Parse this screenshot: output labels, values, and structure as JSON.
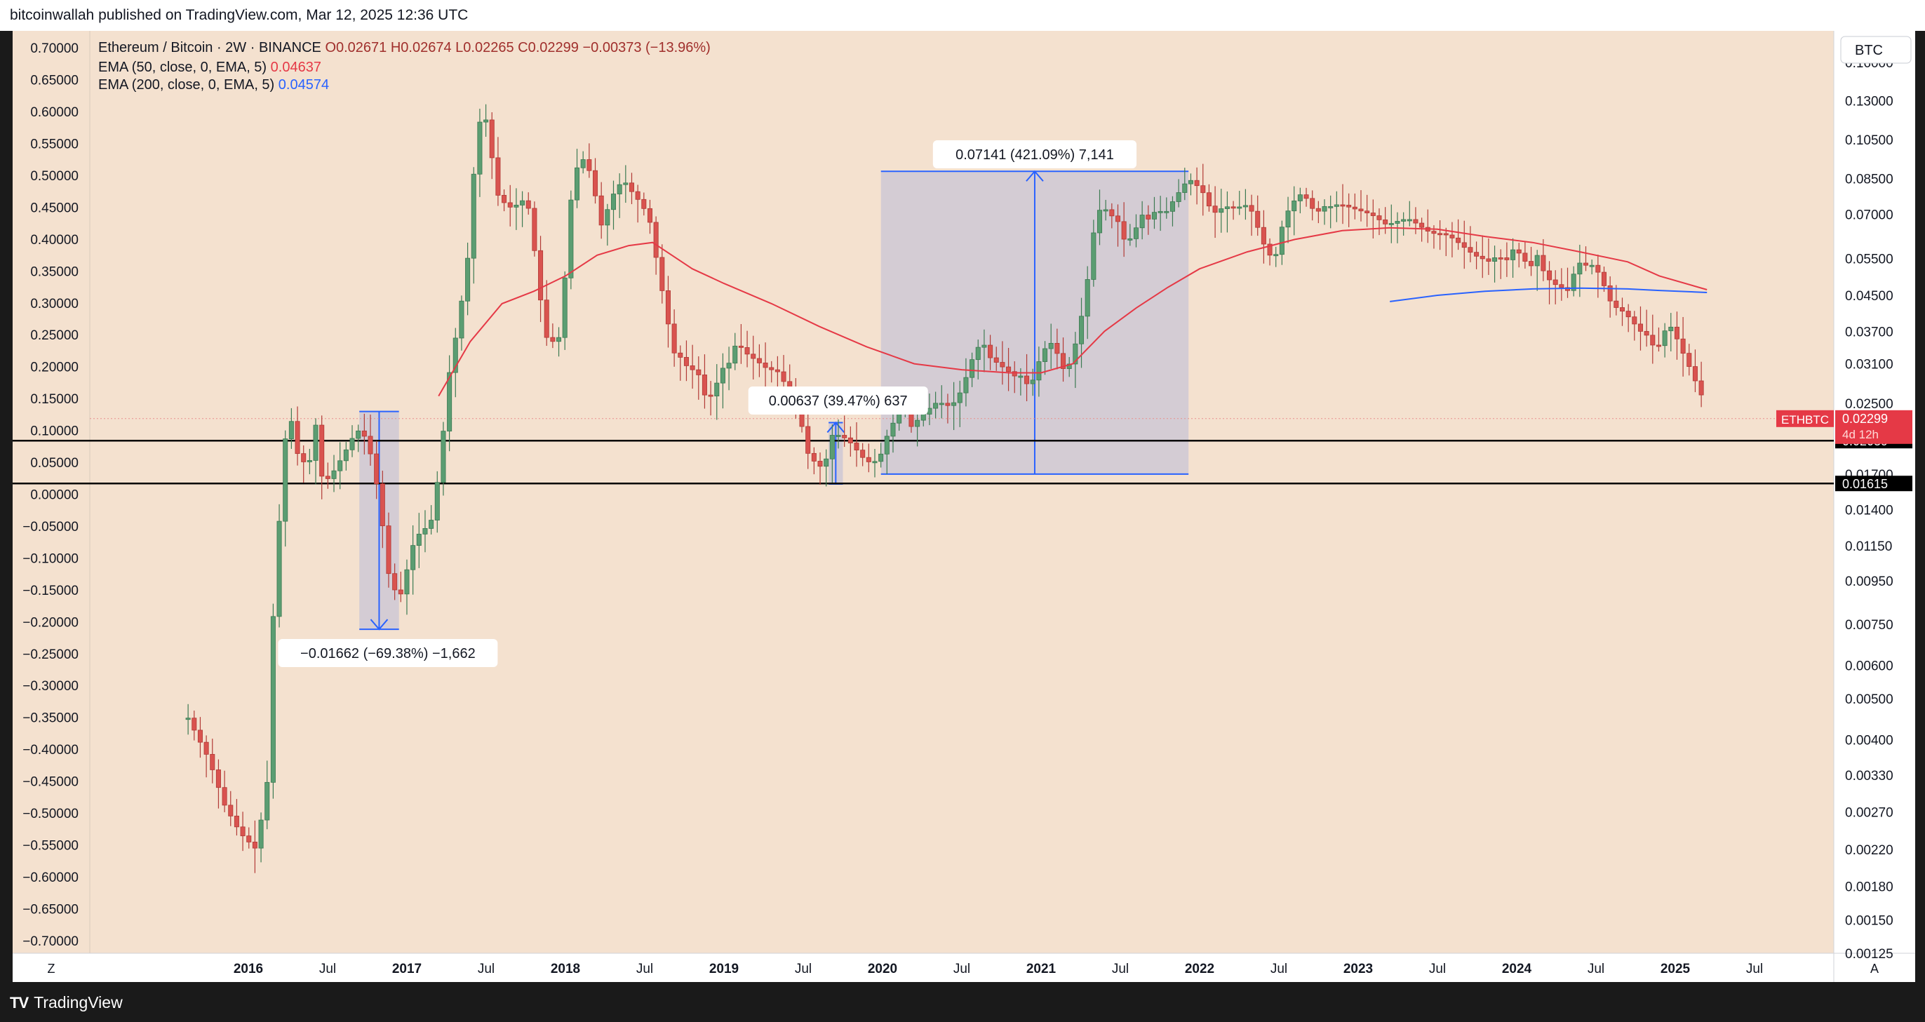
{
  "header": {
    "published_line": "bitcoinwallah published on TradingView.com, Mar 12, 2025 12:36 UTC"
  },
  "footer": {
    "brand_label": "TradingView"
  },
  "chart_data": {
    "type": "candlestick",
    "symbol_line": {
      "name": "Ethereum / Bitcoin · 2W · BINANCE",
      "open": "O0.02671",
      "high": "H0.02674",
      "low": "L0.02265",
      "close": "C0.02299",
      "change": "−0.00373 (−13.96%)"
    },
    "indicators": [
      {
        "label": "EMA (50, close, 0, EMA, 5)",
        "value": "0.04637",
        "color": "#e53946"
      },
      {
        "label": "EMA (200, close, 0, EMA, 5)",
        "value": "0.04574",
        "color": "#2962ff"
      }
    ],
    "currency_button": "BTC",
    "left_axis": {
      "min": -0.7,
      "max": 0.7,
      "ticks": [
        "0.70000",
        "0.65000",
        "0.60000",
        "0.55000",
        "0.50000",
        "0.45000",
        "0.40000",
        "0.35000",
        "0.30000",
        "0.25000",
        "0.20000",
        "0.15000",
        "0.10000",
        "0.05000",
        "0.00000",
        "−0.05000",
        "−0.10000",
        "−0.15000",
        "−0.20000",
        "−0.25000",
        "−0.30000",
        "−0.35000",
        "−0.40000",
        "−0.45000",
        "−0.50000",
        "−0.55000",
        "−0.60000",
        "−0.65000",
        "−0.70000"
      ]
    },
    "right_axis": {
      "scale": "log",
      "min": 0.00125,
      "max": 0.19,
      "ticks": [
        {
          "label": "0.16000",
          "v": 0.16
        },
        {
          "label": "0.13000",
          "v": 0.13
        },
        {
          "label": "0.10500",
          "v": 0.105
        },
        {
          "label": "0.08500",
          "v": 0.085
        },
        {
          "label": "0.07000",
          "v": 0.07
        },
        {
          "label": "0.05500",
          "v": 0.055
        },
        {
          "label": "0.04500",
          "v": 0.045
        },
        {
          "label": "0.03700",
          "v": 0.037
        },
        {
          "label": "0.03100",
          "v": 0.031
        },
        {
          "label": "0.02500",
          "v": 0.025
        },
        {
          "label": "0.01700",
          "v": 0.017
        },
        {
          "label": "0.01400",
          "v": 0.014
        },
        {
          "label": "0.01150",
          "v": 0.0115
        },
        {
          "label": "0.00950",
          "v": 0.0095
        },
        {
          "label": "0.00750",
          "v": 0.0075
        },
        {
          "label": "0.00600",
          "v": 0.006
        },
        {
          "label": "0.00500",
          "v": 0.005
        },
        {
          "label": "0.00400",
          "v": 0.004
        },
        {
          "label": "0.00330",
          "v": 0.0033
        },
        {
          "label": "0.00270",
          "v": 0.0027
        },
        {
          "label": "0.00220",
          "v": 0.0022
        },
        {
          "label": "0.00180",
          "v": 0.0018
        },
        {
          "label": "0.00150",
          "v": 0.0015
        },
        {
          "label": "0.00125",
          "v": 0.00125
        }
      ]
    },
    "price_tag": {
      "symbol": "ETHBTC",
      "price": "0.02299",
      "countdown": "4d 12h",
      "value": 0.02299,
      "color": "#e53946"
    },
    "horizontal_levels": [
      {
        "label": "0.02039",
        "value": 0.02039
      },
      {
        "label": "0.01615",
        "value": 0.01615
      }
    ],
    "x_axis": {
      "start": 2015.0,
      "end": 2026.0,
      "ticks": [
        {
          "label": "2016",
          "t": 2016.0,
          "bold": true
        },
        {
          "label": "Jul",
          "t": 2016.5
        },
        {
          "label": "2017",
          "t": 2017.0,
          "bold": true
        },
        {
          "label": "Jul",
          "t": 2017.5
        },
        {
          "label": "2018",
          "t": 2018.0,
          "bold": true
        },
        {
          "label": "Jul",
          "t": 2018.5
        },
        {
          "label": "2019",
          "t": 2019.0,
          "bold": true
        },
        {
          "label": "Jul",
          "t": 2019.5
        },
        {
          "label": "2020",
          "t": 2020.0,
          "bold": true
        },
        {
          "label": "Jul",
          "t": 2020.5
        },
        {
          "label": "2021",
          "t": 2021.0,
          "bold": true
        },
        {
          "label": "Jul",
          "t": 2021.5
        },
        {
          "label": "2022",
          "t": 2022.0,
          "bold": true
        },
        {
          "label": "Jul",
          "t": 2022.5
        },
        {
          "label": "2023",
          "t": 2023.0,
          "bold": true
        },
        {
          "label": "Jul",
          "t": 2023.5
        },
        {
          "label": "2024",
          "t": 2024.0,
          "bold": true
        },
        {
          "label": "Jul",
          "t": 2024.5
        },
        {
          "label": "2025",
          "t": 2025.0,
          "bold": true
        },
        {
          "label": "Jul",
          "t": 2025.5
        }
      ]
    },
    "corner_buttons": {
      "left": "Z",
      "right": "A"
    },
    "measurements": [
      {
        "label": "−0.01662 (−69.38%) −1,662",
        "t_start": 2016.7,
        "t_end": 2016.95,
        "from": 0.0239,
        "to": 0.0073,
        "direction": "down"
      },
      {
        "label": "0.00637 (39.47%) 637",
        "t_start": 2019.66,
        "t_end": 2019.75,
        "from": 0.0161,
        "to": 0.0225,
        "direction": "up"
      },
      {
        "label": "0.07141 (421.09%) 7,141",
        "t_start": 2019.99,
        "t_end": 2021.93,
        "from": 0.017,
        "to": 0.0884,
        "direction": "up"
      }
    ],
    "series_anchors": {
      "price": [
        [
          2015.62,
          0.0045
        ],
        [
          2015.75,
          0.0036
        ],
        [
          2015.85,
          0.0028
        ],
        [
          2015.95,
          0.0024
        ],
        [
          2016.05,
          0.0022
        ],
        [
          2016.12,
          0.0032
        ],
        [
          2016.16,
          0.0085
        ],
        [
          2016.2,
          0.014
        ],
        [
          2016.25,
          0.025
        ],
        [
          2016.31,
          0.019
        ],
        [
          2016.38,
          0.0175
        ],
        [
          2016.42,
          0.023
        ],
        [
          2016.47,
          0.016
        ],
        [
          2016.55,
          0.0175
        ],
        [
          2016.62,
          0.0195
        ],
        [
          2016.68,
          0.0215
        ],
        [
          2016.72,
          0.0215
        ],
        [
          2016.78,
          0.0185
        ],
        [
          2016.83,
          0.0145
        ],
        [
          2016.88,
          0.01
        ],
        [
          2016.95,
          0.0085
        ],
        [
          2017.05,
          0.012
        ],
        [
          2017.15,
          0.013
        ],
        [
          2017.2,
          0.017
        ],
        [
          2017.23,
          0.0215
        ],
        [
          2017.27,
          0.03
        ],
        [
          2017.32,
          0.038
        ],
        [
          2017.38,
          0.053
        ],
        [
          2017.42,
          0.086
        ],
        [
          2017.45,
          0.11
        ],
        [
          2017.48,
          0.128
        ],
        [
          2017.52,
          0.105
        ],
        [
          2017.57,
          0.078
        ],
        [
          2017.62,
          0.074
        ],
        [
          2017.67,
          0.072
        ],
        [
          2017.72,
          0.076
        ],
        [
          2017.77,
          0.072
        ],
        [
          2017.82,
          0.052
        ],
        [
          2017.87,
          0.036
        ],
        [
          2017.92,
          0.035
        ],
        [
          2017.97,
          0.036
        ],
        [
          2018.03,
          0.074
        ],
        [
          2018.08,
          0.093
        ],
        [
          2018.13,
          0.095
        ],
        [
          2018.18,
          0.08
        ],
        [
          2018.23,
          0.065
        ],
        [
          2018.28,
          0.075
        ],
        [
          2018.33,
          0.082
        ],
        [
          2018.38,
          0.083
        ],
        [
          2018.43,
          0.078
        ],
        [
          2018.48,
          0.074
        ],
        [
          2018.53,
          0.068
        ],
        [
          2018.58,
          0.053
        ],
        [
          2018.63,
          0.042
        ],
        [
          2018.68,
          0.033
        ],
        [
          2018.73,
          0.032
        ],
        [
          2018.78,
          0.03
        ],
        [
          2018.83,
          0.03
        ],
        [
          2018.88,
          0.026
        ],
        [
          2018.93,
          0.026
        ],
        [
          2018.98,
          0.03
        ],
        [
          2019.03,
          0.031
        ],
        [
          2019.08,
          0.035
        ],
        [
          2019.13,
          0.033
        ],
        [
          2019.18,
          0.032
        ],
        [
          2019.23,
          0.031
        ],
        [
          2019.28,
          0.03
        ],
        [
          2019.33,
          0.03
        ],
        [
          2019.38,
          0.028
        ],
        [
          2019.43,
          0.027
        ],
        [
          2019.48,
          0.023
        ],
        [
          2019.53,
          0.019
        ],
        [
          2019.58,
          0.018
        ],
        [
          2019.63,
          0.0175
        ],
        [
          2019.68,
          0.021
        ],
        [
          2019.73,
          0.021
        ],
        [
          2019.78,
          0.0205
        ],
        [
          2019.83,
          0.0195
        ],
        [
          2019.88,
          0.0185
        ],
        [
          2019.93,
          0.018
        ],
        [
          2019.98,
          0.0185
        ],
        [
          2020.03,
          0.021
        ],
        [
          2020.08,
          0.023
        ],
        [
          2020.13,
          0.026
        ],
        [
          2020.18,
          0.022
        ],
        [
          2020.23,
          0.023
        ],
        [
          2020.28,
          0.024
        ],
        [
          2020.33,
          0.025
        ],
        [
          2020.38,
          0.025
        ],
        [
          2020.43,
          0.0245
        ],
        [
          2020.48,
          0.026
        ],
        [
          2020.53,
          0.029
        ],
        [
          2020.58,
          0.033
        ],
        [
          2020.63,
          0.035
        ],
        [
          2020.68,
          0.032
        ],
        [
          2020.73,
          0.031
        ],
        [
          2020.78,
          0.03
        ],
        [
          2020.83,
          0.029
        ],
        [
          2020.88,
          0.029
        ],
        [
          2020.93,
          0.027
        ],
        [
          2020.98,
          0.031
        ],
        [
          2021.03,
          0.034
        ],
        [
          2021.08,
          0.035
        ],
        [
          2021.13,
          0.03
        ],
        [
          2021.18,
          0.031
        ],
        [
          2021.23,
          0.036
        ],
        [
          2021.28,
          0.045
        ],
        [
          2021.33,
          0.063
        ],
        [
          2021.38,
          0.074
        ],
        [
          2021.43,
          0.07
        ],
        [
          2021.48,
          0.068
        ],
        [
          2021.53,
          0.06
        ],
        [
          2021.58,
          0.062
        ],
        [
          2021.63,
          0.07
        ],
        [
          2021.68,
          0.068
        ],
        [
          2021.73,
          0.072
        ],
        [
          2021.78,
          0.07
        ],
        [
          2021.83,
          0.075
        ],
        [
          2021.88,
          0.08
        ],
        [
          2021.93,
          0.085
        ],
        [
          2021.98,
          0.082
        ],
        [
          2022.03,
          0.078
        ],
        [
          2022.08,
          0.07
        ],
        [
          2022.13,
          0.072
        ],
        [
          2022.18,
          0.073
        ],
        [
          2022.23,
          0.072
        ],
        [
          2022.28,
          0.074
        ],
        [
          2022.33,
          0.071
        ],
        [
          2022.38,
          0.063
        ],
        [
          2022.43,
          0.056
        ],
        [
          2022.48,
          0.056
        ],
        [
          2022.53,
          0.068
        ],
        [
          2022.58,
          0.074
        ],
        [
          2022.63,
          0.078
        ],
        [
          2022.68,
          0.076
        ],
        [
          2022.73,
          0.07
        ],
        [
          2022.78,
          0.073
        ],
        [
          2022.83,
          0.073
        ],
        [
          2022.88,
          0.074
        ],
        [
          2022.93,
          0.073
        ],
        [
          2022.98,
          0.072
        ],
        [
          2023.03,
          0.071
        ],
        [
          2023.08,
          0.07
        ],
        [
          2023.13,
          0.068
        ],
        [
          2023.18,
          0.066
        ],
        [
          2023.23,
          0.067
        ],
        [
          2023.28,
          0.068
        ],
        [
          2023.33,
          0.068
        ],
        [
          2023.38,
          0.066
        ],
        [
          2023.43,
          0.064
        ],
        [
          2023.48,
          0.063
        ],
        [
          2023.53,
          0.063
        ],
        [
          2023.58,
          0.062
        ],
        [
          2023.63,
          0.06
        ],
        [
          2023.68,
          0.058
        ],
        [
          2023.73,
          0.056
        ],
        [
          2023.78,
          0.055
        ],
        [
          2023.83,
          0.054
        ],
        [
          2023.88,
          0.056
        ],
        [
          2023.93,
          0.054
        ],
        [
          2023.98,
          0.058
        ],
        [
          2024.03,
          0.056
        ],
        [
          2024.08,
          0.052
        ],
        [
          2024.13,
          0.056
        ],
        [
          2024.18,
          0.05
        ],
        [
          2024.23,
          0.048
        ],
        [
          2024.28,
          0.047
        ],
        [
          2024.33,
          0.046
        ],
        [
          2024.38,
          0.054
        ],
        [
          2024.43,
          0.053
        ],
        [
          2024.48,
          0.053
        ],
        [
          2024.53,
          0.05
        ],
        [
          2024.58,
          0.044
        ],
        [
          2024.63,
          0.042
        ],
        [
          2024.68,
          0.041
        ],
        [
          2024.73,
          0.039
        ],
        [
          2024.78,
          0.037
        ],
        [
          2024.83,
          0.036
        ],
        [
          2024.88,
          0.033
        ],
        [
          2024.93,
          0.037
        ],
        [
          2024.98,
          0.038
        ],
        [
          2025.03,
          0.034
        ],
        [
          2025.08,
          0.031
        ],
        [
          2025.13,
          0.028
        ],
        [
          2025.16,
          0.0267
        ],
        [
          2025.19,
          0.023
        ]
      ],
      "ema50": [
        [
          2017.2,
          0.026
        ],
        [
          2017.4,
          0.035
        ],
        [
          2017.6,
          0.043
        ],
        [
          2017.8,
          0.046
        ],
        [
          2018.0,
          0.05
        ],
        [
          2018.2,
          0.056
        ],
        [
          2018.4,
          0.059
        ],
        [
          2018.55,
          0.06
        ],
        [
          2018.8,
          0.052
        ],
        [
          2019.0,
          0.048
        ],
        [
          2019.3,
          0.043
        ],
        [
          2019.6,
          0.038
        ],
        [
          2019.9,
          0.034
        ],
        [
          2020.2,
          0.031
        ],
        [
          2020.5,
          0.03
        ],
        [
          2020.8,
          0.0295
        ],
        [
          2021.0,
          0.0295
        ],
        [
          2021.2,
          0.031
        ],
        [
          2021.4,
          0.037
        ],
        [
          2021.6,
          0.042
        ],
        [
          2021.8,
          0.047
        ],
        [
          2022.0,
          0.052
        ],
        [
          2022.3,
          0.057
        ],
        [
          2022.6,
          0.061
        ],
        [
          2022.9,
          0.064
        ],
        [
          2023.2,
          0.065
        ],
        [
          2023.5,
          0.0645
        ],
        [
          2023.8,
          0.062
        ],
        [
          2024.1,
          0.06
        ],
        [
          2024.4,
          0.057
        ],
        [
          2024.7,
          0.054
        ],
        [
          2024.9,
          0.05
        ],
        [
          2025.2,
          0.0464
        ]
      ],
      "ema200": [
        [
          2023.2,
          0.0435
        ],
        [
          2023.5,
          0.045
        ],
        [
          2023.8,
          0.046
        ],
        [
          2024.1,
          0.0466
        ],
        [
          2024.4,
          0.0468
        ],
        [
          2024.7,
          0.0466
        ],
        [
          2024.9,
          0.0462
        ],
        [
          2025.2,
          0.0457
        ]
      ]
    }
  }
}
